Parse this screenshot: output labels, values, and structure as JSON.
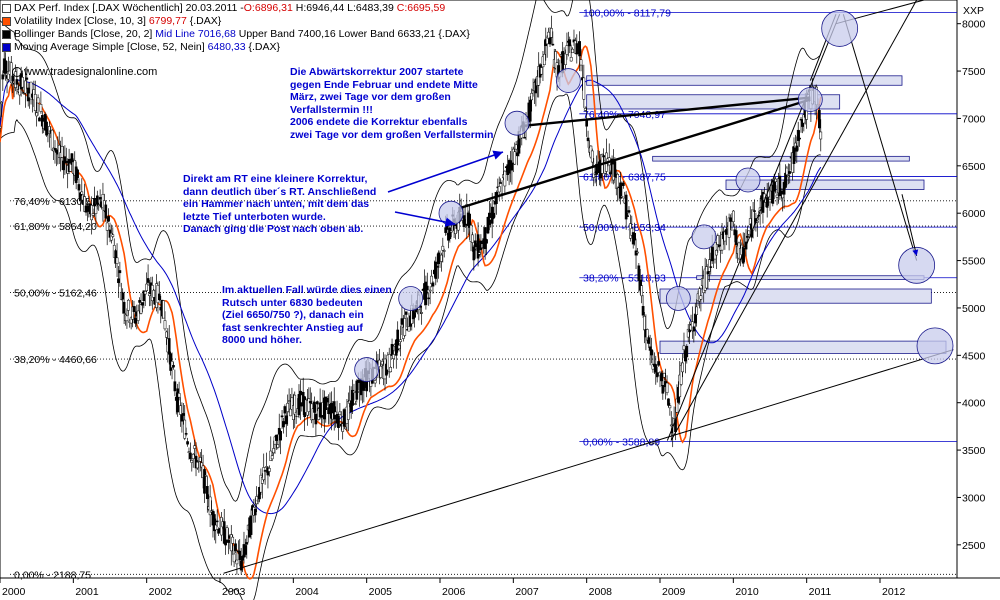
{
  "legend": {
    "line1_prefix": "DAX Perf. Index [.DAX  Wöchentlich] 20.03.2011 - ",
    "line1_open": "O:6896,31",
    "line1_hlc": "H:6946,44 L:6483,39",
    "line1_close": "C:6695,59",
    "line2_label": "Volatility Index [Close, 10, 3]",
    "line2_value": "6799,77",
    "line2_suffix": "{.DAX}",
    "line3_prefix": "Bollinger Bands [Close, 20, 2]",
    "line3_mid": "Mid Line 7016,68",
    "line3_rest": "Upper Band 7400,16 Lower Band 6633,21 {.DAX}",
    "line4_label": "Moving Average Simple [Close, 52, Nein]",
    "line4_value": "6480,33",
    "line4_suffix": "{.DAX}",
    "watermark": "www.tradesignalonline.com"
  },
  "annotations": {
    "a1": "Die Abwärtskorrektur 2007 startete\ngegen Ende Februar und endete Mitte\nMärz, zwei Tage vor dem großen\nVerfallstermin !!!\n2006 endete die Korrektur ebenfalls\nzwei Tage vor dem großen Verfallstermin",
    "a2": "Direkt am RT eine kleinere Korrektur,\ndann deutlich über´s RT. Anschließend\nein Hammer nach unten, mit dem das\nletzte Tief unterboten wurde.\nDanach ging die Post nach oben ab.",
    "a3": "Im aktuellen Fall würde dies einen\nRutsch unter 6830 bedeuten\n(Ziel 6650/750 ?), danach ein\nfast senkrechter Anstieg auf\n8000 und höher."
  },
  "fib_left": [
    "76,40% - 6130,57",
    "61,80% - 5864,20",
    "50,00% - 5162,46",
    "38,20% - 4460,66",
    "0,00% - 2188,75"
  ],
  "fib_right": [
    "100,00% - 8117,79",
    "76,40% - 7048,97",
    "61,80% - 6387,75",
    "50,00% - 5853,34",
    "38,20% - 5318,93",
    "0,00% - 3588,89"
  ],
  "chart_data": {
    "type": "candlestick",
    "title": "DAX Perf. Index [.DAX Wöchentlich]",
    "x_tick_labels": [
      "2000",
      "2001",
      "2002",
      "2003",
      "2004",
      "2005",
      "2006",
      "2007",
      "2008",
      "2009",
      "2010",
      "2011",
      "2012"
    ],
    "y_tick_labels": [
      "2500",
      "3000",
      "3500",
      "4000",
      "4500",
      "5000",
      "5500",
      "6000",
      "6500",
      "7000",
      "7500",
      "8000"
    ],
    "y_axis_title": "XXP",
    "ylim": [
      2150,
      8250
    ],
    "xlim": [
      2000.0,
      2013.05
    ],
    "price_anchors": {
      "x": [
        2000.0,
        2000.05,
        2000.2,
        2000.4,
        2000.6,
        2000.8,
        2001.0,
        2001.2,
        2001.4,
        2001.55,
        2001.7,
        2001.85,
        2002.0,
        2002.2,
        2002.4,
        2002.6,
        2002.75,
        2002.9,
        2003.0,
        2003.15,
        2003.3,
        2003.5,
        2003.7,
        2003.9,
        2004.1,
        2004.3,
        2004.5,
        2004.7,
        2004.9,
        2005.1,
        2005.3,
        2005.5,
        2005.7,
        2005.9,
        2006.1,
        2006.3,
        2006.4,
        2006.45,
        2006.6,
        2006.8,
        2007.0,
        2007.1,
        2007.2,
        2007.4,
        2007.5,
        2007.6,
        2007.75,
        2007.9,
        2008.0,
        2008.1,
        2008.3,
        2008.5,
        2008.7,
        2008.8,
        2008.9,
        2009.0,
        2009.1,
        2009.2,
        2009.3,
        2009.5,
        2009.7,
        2009.9,
        2010.0,
        2010.1,
        2010.3,
        2010.5,
        2010.7,
        2010.8,
        2010.9,
        2011.0,
        2011.1,
        2011.15,
        2011.2
      ],
      "y": [
        6900,
        7600,
        7400,
        7300,
        7000,
        6600,
        6500,
        6000,
        6100,
        5700,
        5000,
        4900,
        5200,
        5100,
        4100,
        3500,
        3300,
        2800,
        2700,
        2500,
        2300,
        3000,
        3400,
        3900,
        4000,
        3900,
        3950,
        3800,
        4200,
        4300,
        4400,
        4800,
        5000,
        5300,
        5800,
        5950,
        6000,
        5600,
        5700,
        6200,
        6600,
        6800,
        7000,
        7600,
        7900,
        7500,
        7700,
        7800,
        7000,
        6400,
        6600,
        6200,
        5500,
        4800,
        4400,
        4300,
        4100,
        3700,
        4400,
        5000,
        5500,
        5800,
        5900,
        5500,
        6000,
        6200,
        6300,
        6500,
        6900,
        7100,
        7300,
        7200,
        6700
      ],
      "seed": 7
    },
    "series": [
      {
        "name": "Volatility Index [Close, 10, 3]",
        "last_value": 6799.77
      },
      {
        "name": "Bollinger Bands [Close, 20, 2]",
        "mid": 7016.68,
        "upper": 7400.16,
        "lower": 6633.21
      },
      {
        "name": "Moving Average Simple [Close, 52, Nein]",
        "last_value": 6480.33
      }
    ],
    "fibonacci_left": [
      {
        "pct": 76.4,
        "value": 6130.57
      },
      {
        "pct": 61.8,
        "value": 5864.2
      },
      {
        "pct": 50.0,
        "value": 5162.46
      },
      {
        "pct": 38.2,
        "value": 4460.66
      },
      {
        "pct": 0.0,
        "value": 2188.75
      }
    ],
    "fibonacci_right": [
      {
        "pct": 100.0,
        "value": 8117.79
      },
      {
        "pct": 76.4,
        "value": 7048.97
      },
      {
        "pct": 61.8,
        "value": 6387.75
      },
      {
        "pct": 50.0,
        "value": 5853.34
      },
      {
        "pct": 38.2,
        "value": 5318.93
      },
      {
        "pct": 0.0,
        "value": 3588.89
      }
    ]
  },
  "colors": {
    "candle_up": "#ffffff",
    "candle_down": "#000000",
    "volatility": "#ff5000",
    "ma": "#0000c8",
    "bollinger": "#000000",
    "fib": "#0000c8",
    "zone_fill": "#dde0f2",
    "zone_stroke": "#1a1a8c",
    "circle_fill": "#c8ccec",
    "annotation": "#0000d0",
    "legend_red": "#d40000",
    "legend_blue": "#0000c8"
  }
}
